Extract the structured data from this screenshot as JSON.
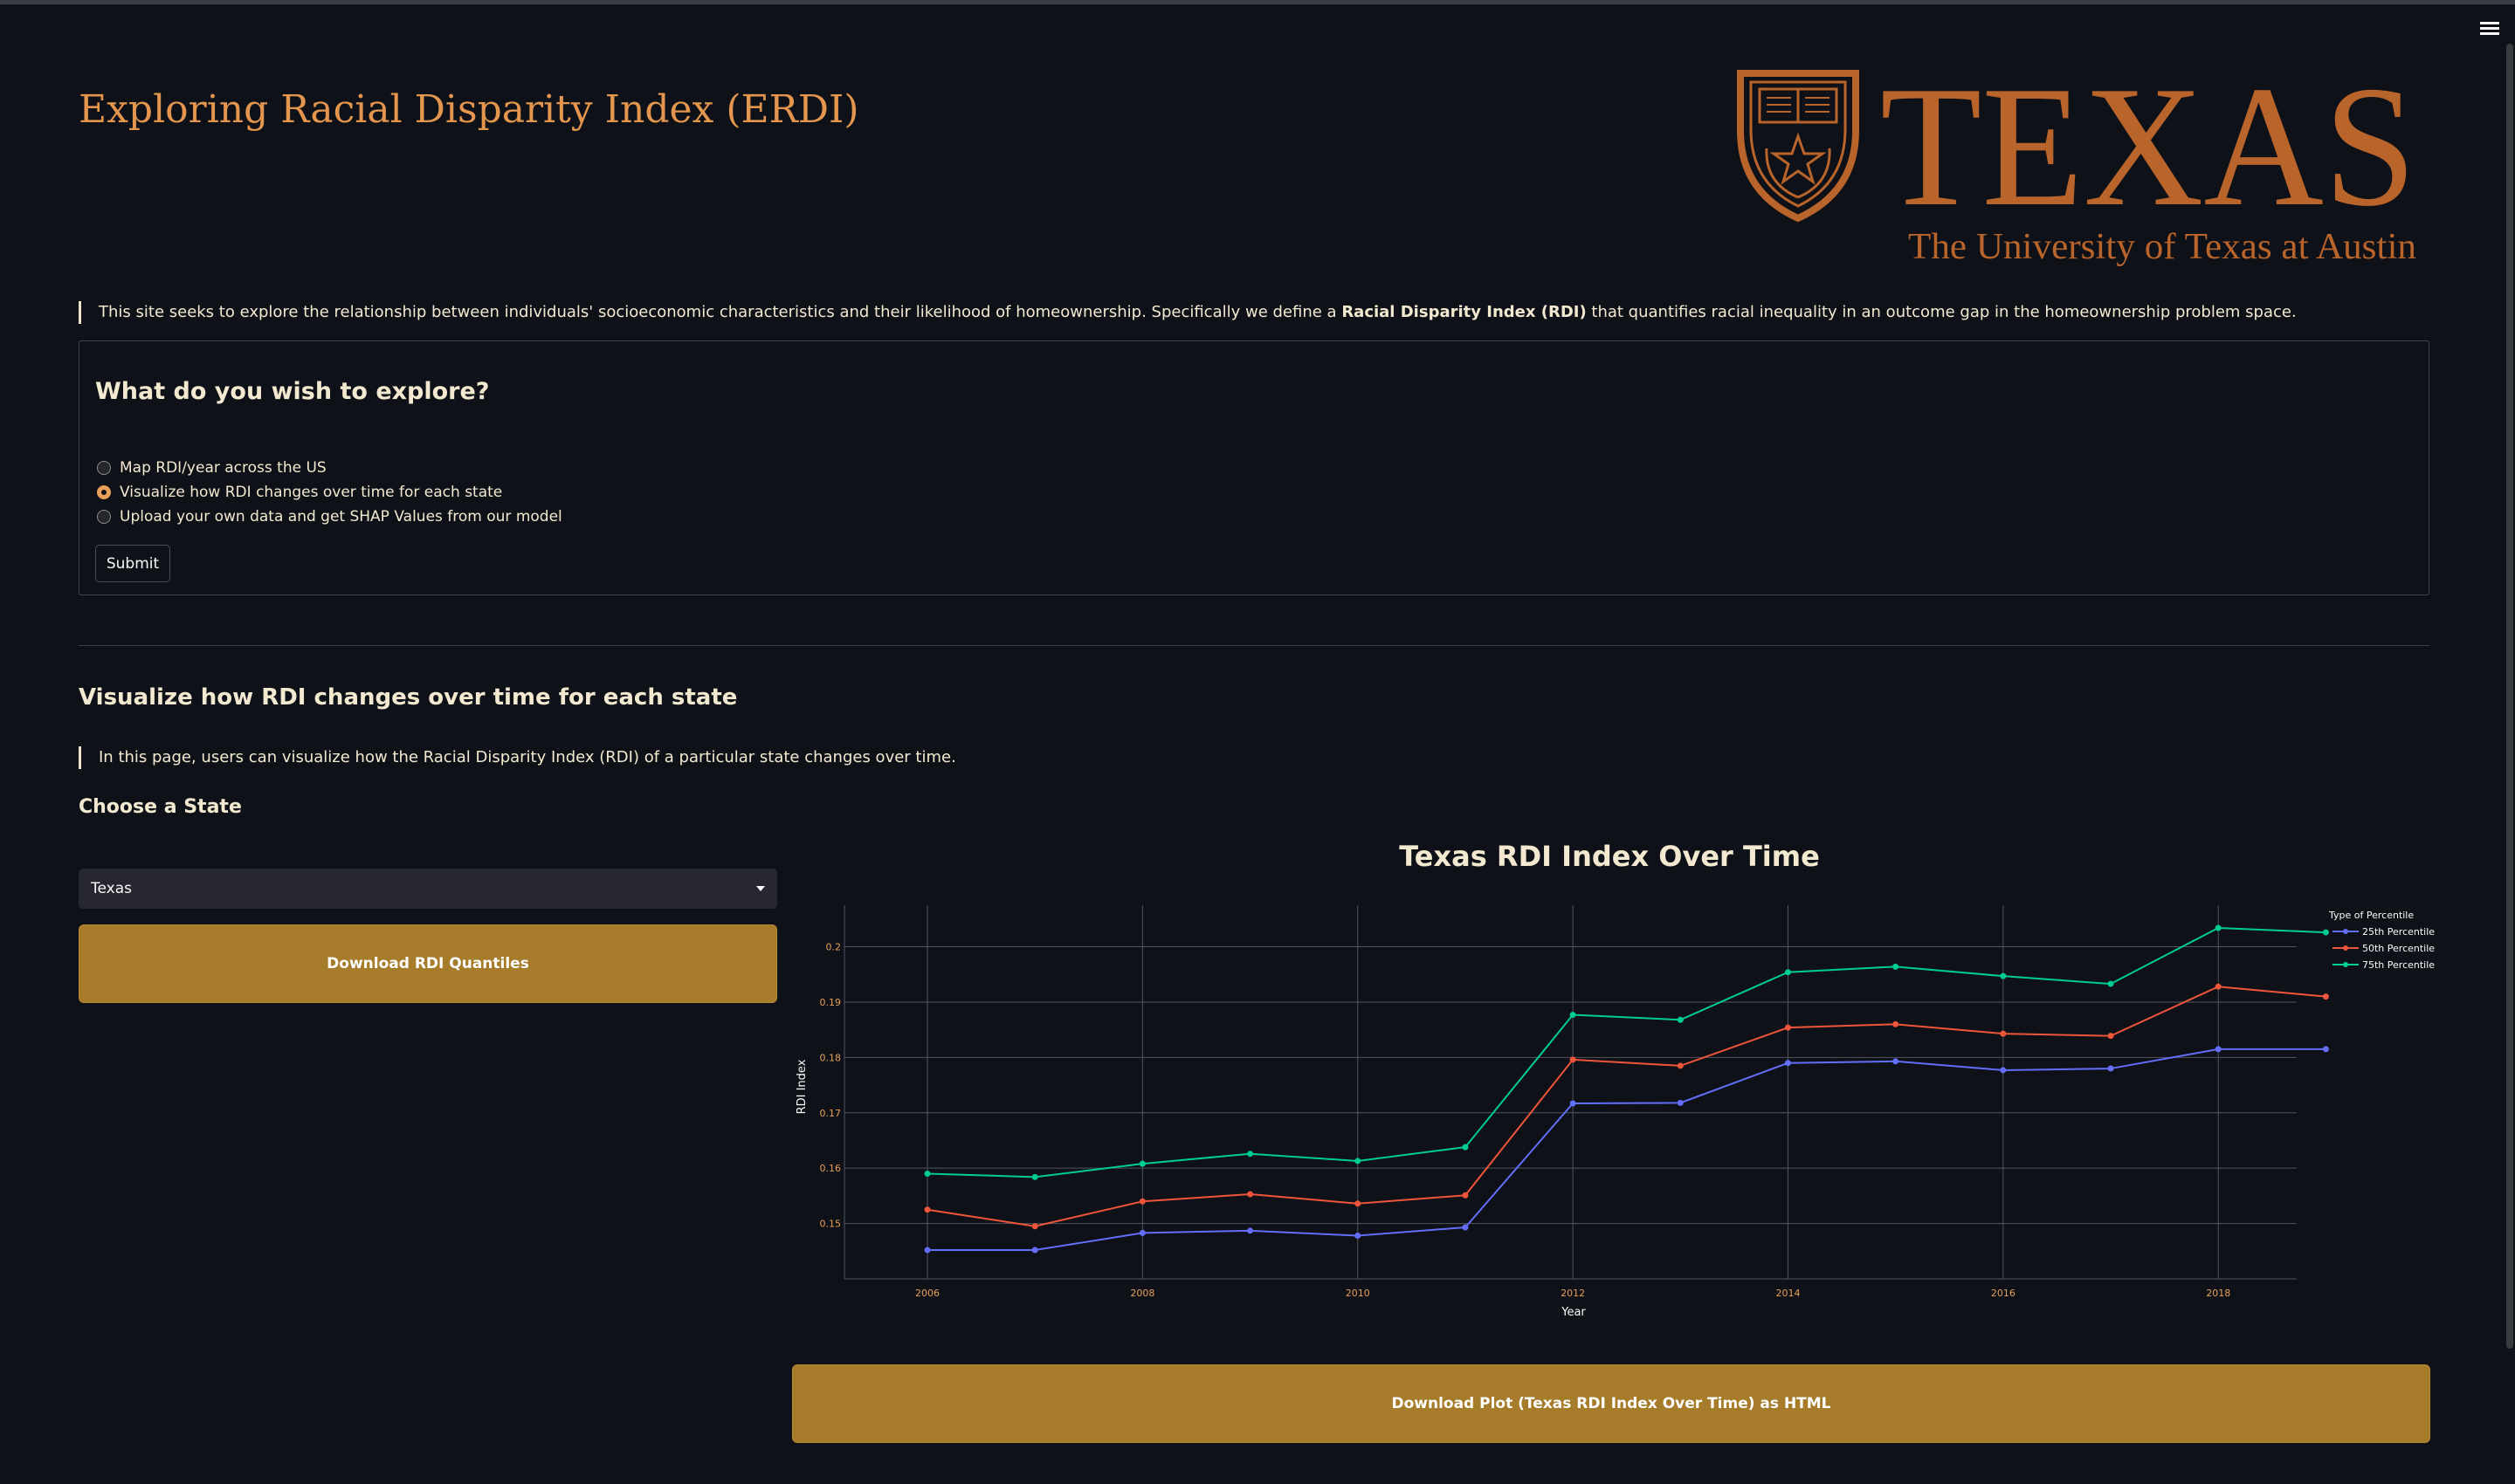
{
  "app": {
    "title": "Exploring Racial Disparity Index (ERDI)"
  },
  "logo": {
    "wordmark": "TEXAS",
    "subtitle": "The University of Texas at Austin",
    "color": "#b8642b"
  },
  "intro": {
    "text_before": "This site seeks to explore the relationship between individuals' socioeconomic characteristics and their likelihood of homeownership. Specifically we define a ",
    "bold": "Racial Disparity Index (RDI)",
    "text_after": " that quantifies racial inequality in an outcome gap in the homeownership problem space."
  },
  "form": {
    "title": "What do you wish to explore?",
    "options": [
      "Map RDI/year across the US",
      "Visualize how RDI changes over time for each state",
      "Upload your own data and get SHAP Values from our model"
    ],
    "selected_index": 1,
    "submit_label": "Submit"
  },
  "section": {
    "title": "Visualize how RDI changes over time for each state",
    "description": "In this page, users can visualize how the Racial Disparity Index (RDI) of a particular state changes over time.",
    "choose_label": "Choose a State",
    "selected_state": "Texas",
    "download_quantiles_label": "Download RDI Quantiles",
    "download_plot_label": "Download Plot (Texas RDI Index Over Time) as HTML"
  },
  "chart_data": {
    "type": "line",
    "title": "Texas RDI Index Over Time",
    "xlabel": "Year",
    "ylabel": "RDI Index",
    "x": [
      2006,
      2007,
      2008,
      2009,
      2010,
      2011,
      2012,
      2013,
      2014,
      2015,
      2016,
      2017,
      2018,
      2019
    ],
    "xlim": [
      2006,
      2019.5
    ],
    "ylim": [
      0.14,
      0.2075
    ],
    "xticks": [
      "2006",
      "2008",
      "2010",
      "2012",
      "2014",
      "2016",
      "2018"
    ],
    "yticks": [
      "0.15",
      "0.16",
      "0.17",
      "0.18",
      "0.19",
      "0.2"
    ],
    "legend_title": "Type of Percentile",
    "legend_position": "top-right",
    "grid": true,
    "series": [
      {
        "name": "25th Percentile",
        "color": "#636efa",
        "values": [
          0.1452,
          0.1452,
          0.1483,
          0.1487,
          0.1478,
          0.1493,
          0.1717,
          0.1718,
          0.179,
          0.1793,
          0.1777,
          0.178,
          0.1815,
          0.1815
        ]
      },
      {
        "name": "50th Percentile",
        "color": "#ef553b",
        "values": [
          0.1525,
          0.1495,
          0.154,
          0.1553,
          0.1536,
          0.1551,
          0.1796,
          0.1785,
          0.1854,
          0.186,
          0.1843,
          0.1839,
          0.1928,
          0.191
        ]
      },
      {
        "name": "75th Percentile",
        "color": "#00cc96",
        "values": [
          0.159,
          0.1584,
          0.1608,
          0.1626,
          0.1613,
          0.1638,
          0.1877,
          0.1868,
          0.1954,
          0.1964,
          0.1947,
          0.1933,
          0.2034,
          0.2026
        ]
      }
    ]
  }
}
